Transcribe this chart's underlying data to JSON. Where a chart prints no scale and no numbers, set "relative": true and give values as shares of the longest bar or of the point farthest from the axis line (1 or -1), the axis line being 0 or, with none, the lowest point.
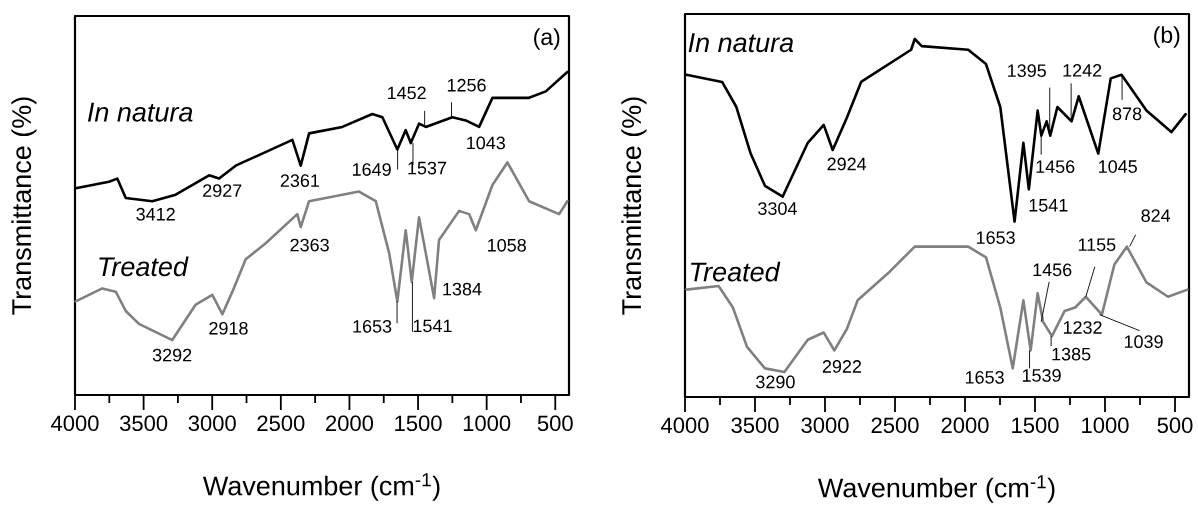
{
  "chart_data": [
    {
      "type": "line",
      "relative": true,
      "title": "(a)",
      "xlabel": "Wavenumber (cm$^{-1}$)",
      "ylabel": "Transmittance (%)",
      "xlim": [
        4000,
        400
      ],
      "xticks": [
        4000,
        3500,
        3000,
        2500,
        2000,
        1500,
        1000,
        500
      ],
      "series": [
        {
          "name": "In natura",
          "color": "#000000",
          "x": [
            3995,
            3752,
            3692,
            3630,
            3437,
            3266,
            3023,
            2950,
            2829,
            2416,
            2355,
            2294,
            2052,
            1833,
            1760,
            1651,
            1590,
            1553,
            1493,
            1444,
            1250,
            1152,
            1055,
            958,
            691,
            569,
            412
          ],
          "values": [
            0.64,
            0.66,
            0.67,
            0.61,
            0.6,
            0.62,
            0.68,
            0.67,
            0.71,
            0.79,
            0.71,
            0.81,
            0.83,
            0.87,
            0.86,
            0.76,
            0.82,
            0.78,
            0.84,
            0.83,
            0.86,
            0.85,
            0.83,
            0.92,
            0.92,
            0.94,
            1.0
          ]
        },
        {
          "name": "Treated",
          "color": "#808080",
          "x": [
            3995,
            3801,
            3703,
            3630,
            3534,
            3291,
            3120,
            2999,
            2926,
            2853,
            2756,
            2610,
            2380,
            2355,
            2294,
            1930,
            1808,
            1711,
            1651,
            1590,
            1546,
            1493,
            1444,
            1383,
            1347,
            1201,
            1128,
            1079,
            958,
            849,
            691,
            472,
            412
          ],
          "values": [
            0.29,
            0.33,
            0.32,
            0.26,
            0.22,
            0.17,
            0.28,
            0.31,
            0.25,
            0.32,
            0.42,
            0.47,
            0.56,
            0.52,
            0.6,
            0.63,
            0.6,
            0.44,
            0.29,
            0.51,
            0.35,
            0.55,
            0.44,
            0.3,
            0.48,
            0.57,
            0.56,
            0.51,
            0.65,
            0.72,
            0.6,
            0.56,
            0.6
          ]
        }
      ],
      "annotations": [
        {
          "text": "3412",
          "x": 3412,
          "y": 0.6
        },
        {
          "text": "2927",
          "x": 2927,
          "y": 0.67
        },
        {
          "text": "2361",
          "x": 2361,
          "y": 0.71
        },
        {
          "text": "1649",
          "x": 1649,
          "y": 0.76
        },
        {
          "text": "1537",
          "x": 1537,
          "y": 0.78
        },
        {
          "text": "1452",
          "x": 1452,
          "y": 0.83
        },
        {
          "text": "1256",
          "x": 1256,
          "y": 0.86
        },
        {
          "text": "1043",
          "x": 1043,
          "y": 0.83
        },
        {
          "text": "3292",
          "x": 3292,
          "y": 0.17
        },
        {
          "text": "2918",
          "x": 2918,
          "y": 0.25
        },
        {
          "text": "2363",
          "x": 2363,
          "y": 0.52
        },
        {
          "text": "1653",
          "x": 1653,
          "y": 0.29
        },
        {
          "text": "1541",
          "x": 1541,
          "y": 0.35
        },
        {
          "text": "1384",
          "x": 1384,
          "y": 0.3
        },
        {
          "text": "1058",
          "x": 1058,
          "y": 0.51
        }
      ]
    },
    {
      "type": "line",
      "relative": true,
      "title": "(b)",
      "xlabel": "Wavenumber (cm$^{-1}$)",
      "ylabel": "Transmittance (%)",
      "xlim": [
        4000,
        400
      ],
      "xticks": [
        4000,
        3500,
        3000,
        2500,
        2000,
        1500,
        1000,
        500
      ],
      "series": [
        {
          "name": "In natura",
          "color": "#000000",
          "x": [
            3990,
            3735,
            3633,
            3531,
            3429,
            3302,
            3123,
            3009,
            2945,
            2844,
            2742,
            2385,
            2359,
            2309,
            1977,
            1850,
            1748,
            1646,
            1583,
            1544,
            1481,
            1455,
            1417,
            1391,
            1340,
            1239,
            1188,
            1048,
            959,
            882,
            704,
            526,
            424
          ],
          "values": [
            0.9,
            0.88,
            0.81,
            0.68,
            0.59,
            0.56,
            0.71,
            0.76,
            0.69,
            0.78,
            0.88,
            0.97,
            1.0,
            0.98,
            0.97,
            0.93,
            0.81,
            0.49,
            0.71,
            0.58,
            0.8,
            0.73,
            0.77,
            0.73,
            0.81,
            0.77,
            0.84,
            0.68,
            0.89,
            0.9,
            0.8,
            0.74,
            0.79
          ]
        },
        {
          "name": "Treated",
          "color": "#808080",
          "x": [
            3990,
            3760,
            3658,
            3557,
            3429,
            3290,
            3123,
            3009,
            2933,
            2844,
            2767,
            2538,
            2359,
            1977,
            1850,
            1748,
            1659,
            1583,
            1531,
            1481,
            1442,
            1379,
            1289,
            1213,
            1137,
            1022,
            933,
            844,
            704,
            550,
            411
          ],
          "values": [
            0.3,
            0.31,
            0.25,
            0.14,
            0.08,
            0.07,
            0.16,
            0.18,
            0.13,
            0.19,
            0.27,
            0.35,
            0.42,
            0.42,
            0.39,
            0.25,
            0.08,
            0.27,
            0.13,
            0.29,
            0.21,
            0.17,
            0.24,
            0.25,
            0.28,
            0.23,
            0.37,
            0.42,
            0.32,
            0.28,
            0.3
          ]
        }
      ],
      "annotations": [
        {
          "text": "3304",
          "x": 3304,
          "y": 0.56
        },
        {
          "text": "2924",
          "x": 2924,
          "y": 0.69
        },
        {
          "text": "1653",
          "x": 1653,
          "y": 0.49
        },
        {
          "text": "1541",
          "x": 1541,
          "y": 0.58
        },
        {
          "text": "1395",
          "x": 1395,
          "y": 0.73
        },
        {
          "text": "1242",
          "x": 1242,
          "y": 0.77
        },
        {
          "text": "878",
          "x": 878,
          "y": 0.9
        },
        {
          "text": "1456",
          "x": 1456,
          "y": 0.73
        },
        {
          "text": "1045",
          "x": 1045,
          "y": 0.68
        },
        {
          "text": "3290",
          "x": 3290,
          "y": 0.07
        },
        {
          "text": "2922",
          "x": 2922,
          "y": 0.13
        },
        {
          "text": "1653",
          "x": 1653,
          "y": 0.08
        },
        {
          "text": "1539",
          "x": 1539,
          "y": 0.13
        },
        {
          "text": "1385",
          "x": 1385,
          "y": 0.17
        },
        {
          "text": "1456",
          "x": 1456,
          "y": 0.21
        },
        {
          "text": "1232",
          "x": 1232,
          "y": 0.25
        },
        {
          "text": "1155",
          "x": 1137,
          "y": 0.28
        },
        {
          "text": "824",
          "x": 824,
          "y": 0.42
        },
        {
          "text": "1039",
          "x": 1039,
          "y": 0.23
        }
      ]
    }
  ]
}
